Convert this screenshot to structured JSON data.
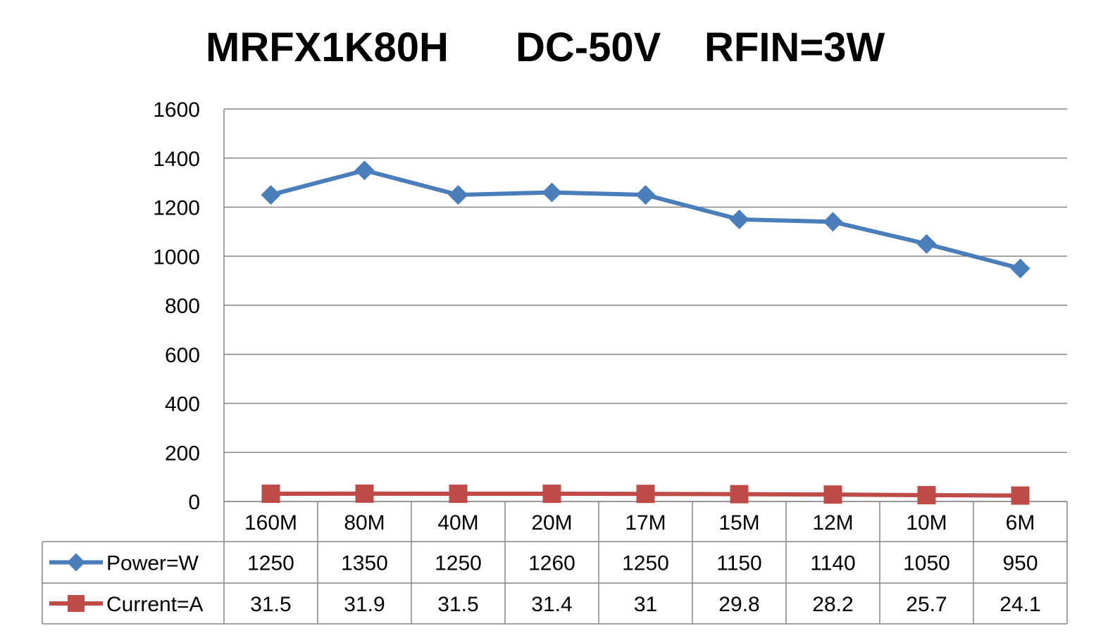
{
  "chart_data": {
    "type": "line",
    "title_parts": [
      "MRFX1K80H",
      "DC-50V",
      "RFIN=3W"
    ],
    "categories": [
      "160M",
      "80M",
      "40M",
      "20M",
      "17M",
      "15M",
      "12M",
      "10M",
      "6M"
    ],
    "series": [
      {
        "name": "Power=W",
        "values": [
          1250,
          1350,
          1250,
          1260,
          1250,
          1150,
          1140,
          1050,
          950
        ],
        "labels": [
          "1250",
          "1350",
          "1250",
          "1260",
          "1250",
          "1150",
          "1140",
          "1050",
          "950"
        ],
        "color": "#4a7ebb",
        "marker": "diamond"
      },
      {
        "name": "Current=A",
        "values": [
          31.5,
          31.9,
          31.5,
          31.4,
          31,
          29.8,
          28.2,
          25.7,
          24.1
        ],
        "labels": [
          "31.5",
          "31.9",
          "31.5",
          "31.4",
          "31",
          "29.8",
          "28.2",
          "25.7",
          "24.1"
        ],
        "color": "#be4b48",
        "marker": "square"
      }
    ],
    "ylim": [
      0,
      1600
    ],
    "yticks": [
      "0",
      "200",
      "400",
      "600",
      "800",
      "1000",
      "1200",
      "1400",
      "1600"
    ],
    "grid": true,
    "legend": "data-table"
  }
}
